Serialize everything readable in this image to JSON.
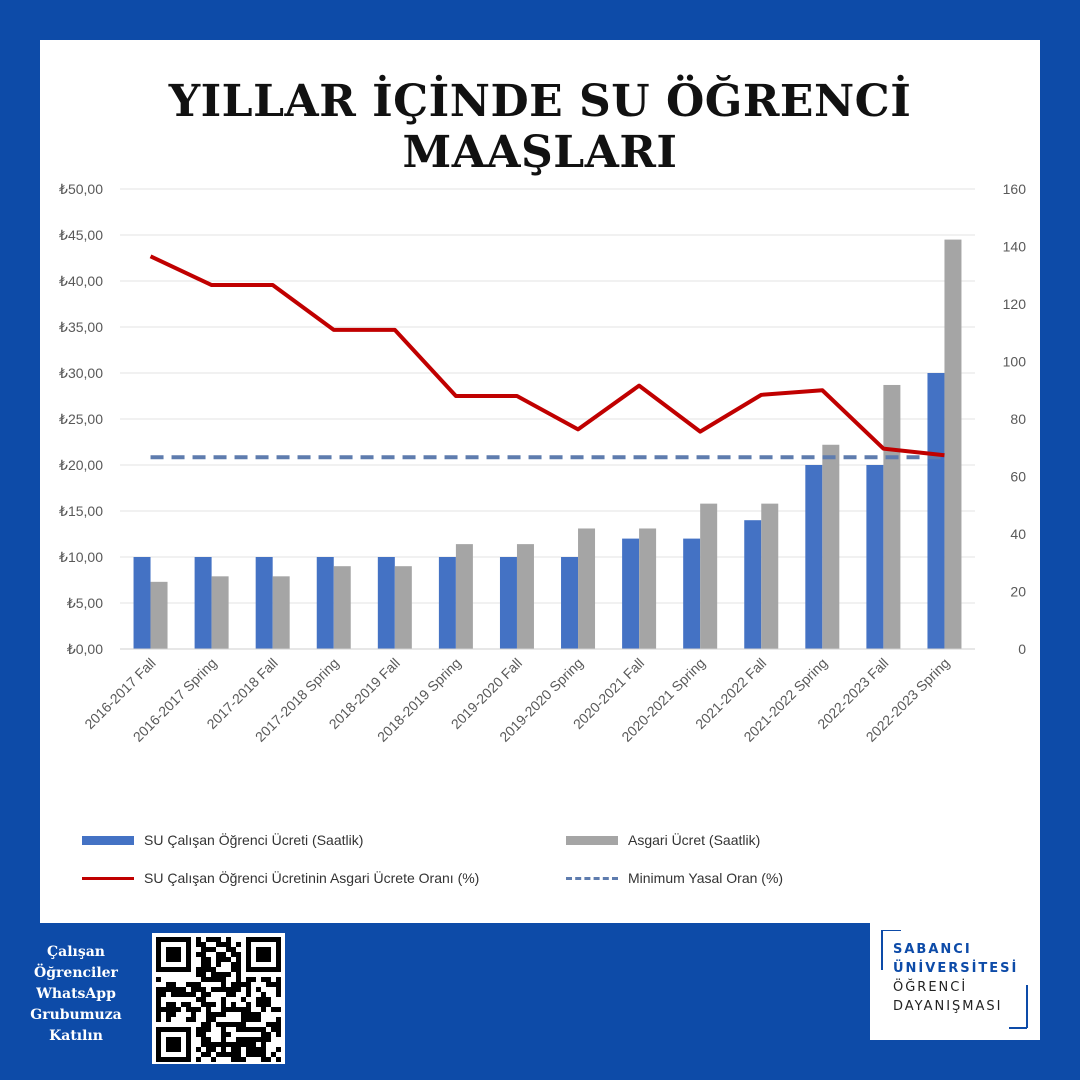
{
  "title": "YILLAR İÇİNDE SU ÖĞRENCİ MAAŞLARI",
  "chart_data": {
    "type": "bar",
    "categories": [
      "2016-2017 Fall",
      "2016-2017 Spring",
      "2017-2018 Fall",
      "2017-2018 Spring",
      "2018-2019 Fall",
      "2018-2019 Spring",
      "2019-2020 Fall",
      "2019-2020 Spring",
      "2020-2021 Fall",
      "2020-2021 Spring",
      "2021-2022 Fall",
      "2021-2022 Spring",
      "2022-2023 Fall",
      "2022-2023 Spring"
    ],
    "series": [
      {
        "name": "SU Çalışan Öğrenci Ücreti (Saatlik)",
        "kind": "bar",
        "axis": "left",
        "color": "#4472c4",
        "values": [
          10,
          10,
          10,
          10,
          10,
          10,
          10,
          10,
          12,
          12,
          14,
          20,
          20,
          30
        ]
      },
      {
        "name": "Asgari Ücret (Saatlik)",
        "kind": "bar",
        "axis": "left",
        "color": "#a5a5a5",
        "values": [
          7.3,
          7.9,
          7.9,
          9,
          9,
          11.4,
          11.4,
          13.1,
          13.1,
          15.8,
          15.8,
          22.2,
          28.7,
          44.5
        ]
      },
      {
        "name": "SU Çalışan Öğrenci Ücretinin Asgari Ücrete Oranı (%)",
        "kind": "line",
        "axis": "right",
        "color": "#c00000",
        "values": [
          136.6,
          126.6,
          126.6,
          111,
          111,
          88,
          88,
          76.4,
          91.6,
          75.6,
          88.4,
          90,
          69.7,
          67.4
        ]
      },
      {
        "name": "Minimum Yasal Oran (%)",
        "kind": "dashed-line",
        "axis": "right",
        "color": "#5e7cae",
        "values": [
          66.7,
          66.7,
          66.7,
          66.7,
          66.7,
          66.7,
          66.7,
          66.7,
          66.7,
          66.7,
          66.7,
          66.7,
          66.7,
          66.7
        ]
      }
    ],
    "y_left": {
      "min": 0,
      "max": 50,
      "step": 5,
      "tick_labels": [
        "₺0,00",
        "₺5,00",
        "₺10,00",
        "₺15,00",
        "₺20,00",
        "₺25,00",
        "₺30,00",
        "₺35,00",
        "₺40,00",
        "₺45,00",
        "₺50,00"
      ]
    },
    "y_right": {
      "min": 0,
      "max": 160,
      "step": 20,
      "tick_labels": [
        "0",
        "20",
        "40",
        "60",
        "80",
        "100",
        "120",
        "140",
        "160"
      ]
    },
    "grid": true,
    "legend_position": "bottom"
  },
  "qr": {
    "text": "Çalışan Öğrenciler WhatsApp Grubumuza Katılın",
    "lines": [
      "Çalışan",
      "Öğrenciler",
      "WhatsApp",
      "Grubumuza",
      "Katılın"
    ],
    "icon": "qr-code-icon"
  },
  "logo": {
    "lines": [
      "SABANCI",
      "ÜNİVERSİTESİ",
      "ÖĞRENCİ",
      "DAYANIŞMASI"
    ],
    "colors": {
      "primary": "#0d4ba8",
      "secondary": "#222222"
    }
  },
  "colors": {
    "background": "#0d4ba8",
    "card": "#ffffff"
  }
}
